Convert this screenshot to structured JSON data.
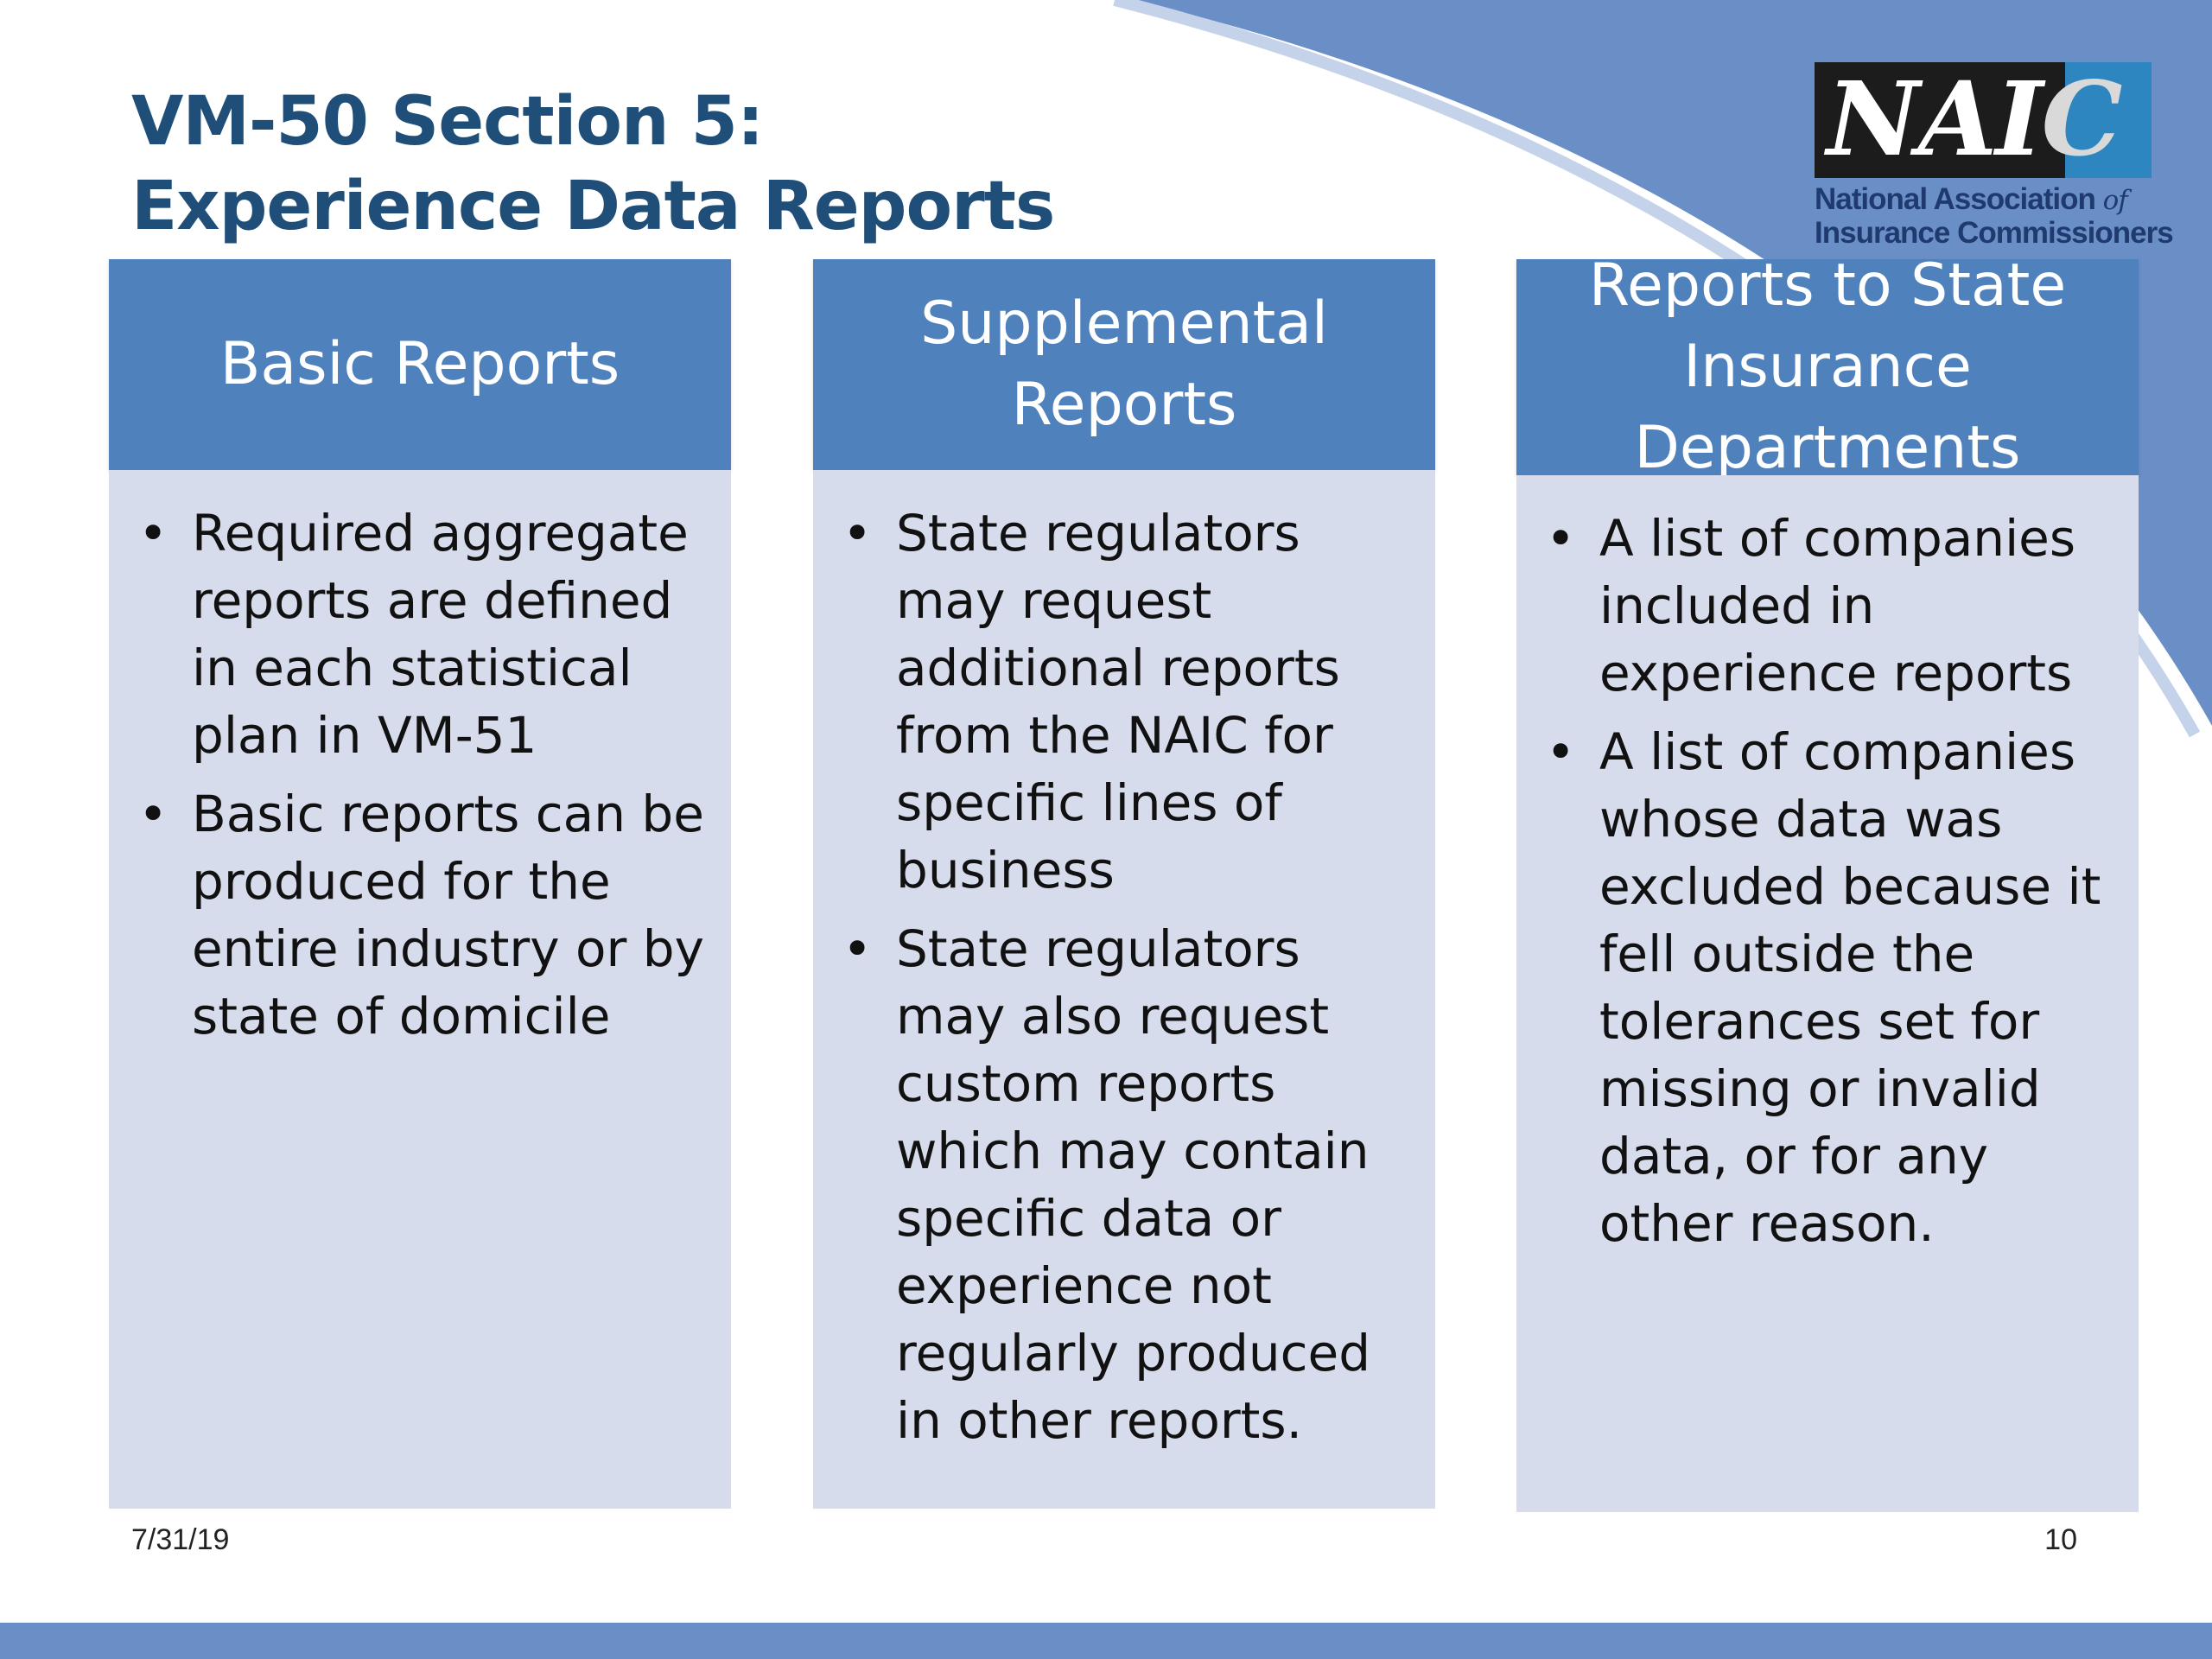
{
  "slide": {
    "title_line1": "VM-50 Section 5:",
    "title_line2": "Experience Data Reports",
    "date": "7/31/19",
    "page_number": "10"
  },
  "logo": {
    "letters": "NAI",
    "letter_c": "C",
    "subtitle_line1_main": "National Association",
    "subtitle_line1_of": "of",
    "subtitle_line2": "Insurance Commissioners"
  },
  "columns": [
    {
      "heading": "Basic Reports",
      "bullets": [
        "Required aggregate reports are defined in each statistical plan in VM-51",
        "Basic reports can be produced for the entire industry or by state of domicile"
      ]
    },
    {
      "heading": "Supplemental Reports",
      "bullets": [
        "State regulators may request additional reports from the NAIC for specific lines of business",
        "State regulators may also request custom reports which may contain specific data or experience not regularly produced in other reports."
      ]
    },
    {
      "heading": "Reports to State Insurance Departments",
      "bullets": [
        "A list of companies included in experience reports",
        "A list of companies whose data was excluded because it fell outside the tolerances set for missing or invalid data, or for any other reason."
      ]
    }
  ],
  "colors": {
    "title": "#1f4e79",
    "header_fill": "#4f81bd",
    "body_fill": "#d6dceb",
    "swoosh": "#6a8fc7",
    "bottom_bar": "#6a8fc7"
  }
}
